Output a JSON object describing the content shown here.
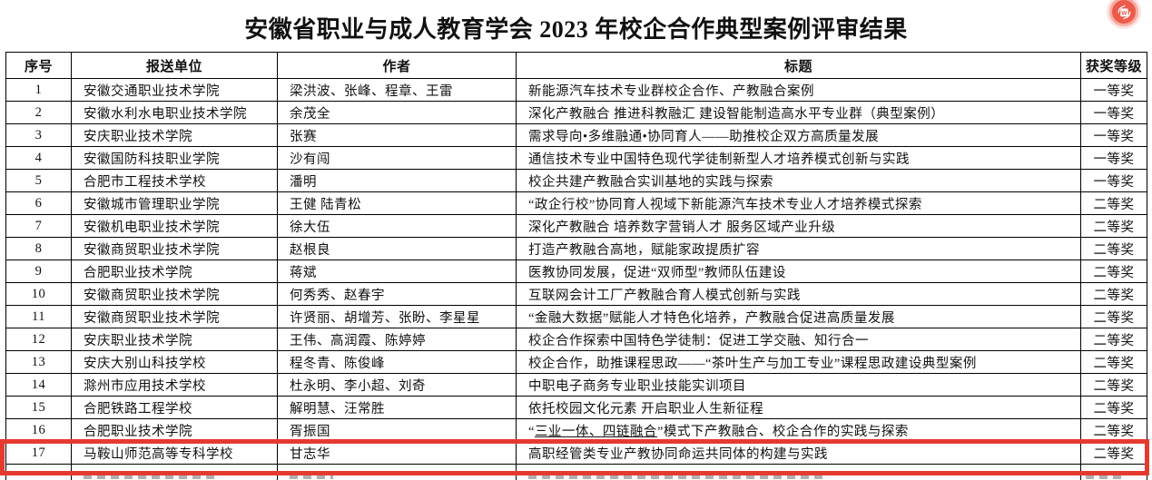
{
  "page": {
    "title": "安徽省职业与成人教育学会 2023 年校企合作典型案例评审结果"
  },
  "icons": {
    "fab": "doc-convert-icon"
  },
  "colors": {
    "highlight_border": "#e53a2e",
    "fab_circle": "#ec5a4a",
    "fab_halo": "#f6aca2",
    "table_border": "#000000"
  },
  "table": {
    "headers": [
      "序号",
      "报送单位",
      "作者",
      "标题",
      "获奖等级"
    ],
    "highlighted_row_no": "17",
    "partial_row_clipped_at_bottom": true,
    "rows": [
      {
        "no": "1",
        "unit": "安徽交通职业技术学院",
        "authors": "梁洪波、张峰、程章、王雷",
        "title": "新能源汽车技术专业群校企合作、产教融合案例",
        "award": "一等奖"
      },
      {
        "no": "2",
        "unit": "安徽水利水电职业技术学院",
        "authors": "余茂全",
        "title": "深化产教融合 推进科教融汇 建设智能制造高水平专业群（典型案例）",
        "award": "一等奖"
      },
      {
        "no": "3",
        "unit": "安庆职业技术学院",
        "authors": "张赛",
        "title": "需求导向•多维融通•协同育人——助推校企双方高质量发展",
        "award": "一等奖"
      },
      {
        "no": "4",
        "unit": "安徽国防科技职业学院",
        "authors": "沙有闯",
        "title": "通信技术专业中国特色现代学徒制新型人才培养模式创新与实践",
        "award": "一等奖"
      },
      {
        "no": "5",
        "unit": "合肥市工程技术学校",
        "authors": "潘明",
        "title": "校企共建产教融合实训基地的实践与探索",
        "award": "一等奖"
      },
      {
        "no": "6",
        "unit": "安徽城市管理职业学院",
        "authors": "王健 陆青松",
        "title": "“政企行校”协同育人视域下新能源汽车技术专业人才培养模式探索",
        "award": "二等奖"
      },
      {
        "no": "7",
        "unit": "安徽机电职业技术学院",
        "authors": "徐大伍",
        "title": "深化产教融合 培养数字营销人才 服务区域产业升级",
        "award": "二等奖"
      },
      {
        "no": "8",
        "unit": "安徽商贸职业技术学院",
        "authors": "赵根良",
        "title": "打造产教融合高地，赋能家政提质扩容",
        "award": "二等奖"
      },
      {
        "no": "9",
        "unit": "合肥职业技术学院",
        "authors": "蒋斌",
        "title": "医教协同发展，促进“双师型”教师队伍建设",
        "award": "二等奖"
      },
      {
        "no": "10",
        "unit": "安徽商贸职业技术学院",
        "authors": "何秀秀、赵春宇",
        "title": "互联网会计工厂产教融合育人模式创新与实践",
        "award": "二等奖"
      },
      {
        "no": "11",
        "unit": "安徽商贸职业技术学院",
        "authors": "许贤丽、胡增芳、张盼、李星星",
        "title": "“金融大数据”赋能人才特色化培养，产教融合促进高质量发展",
        "award": "二等奖"
      },
      {
        "no": "12",
        "unit": "安庆职业技术学院",
        "authors": "王伟、高润霞、陈婷婷",
        "title": "校企合作探索中国特色学徒制：促进工学交融、知行合一",
        "award": "二等奖"
      },
      {
        "no": "13",
        "unit": "安庆大别山科技学校",
        "authors": "程冬青、陈俊峰",
        "title": "校企合作，助推课程思政——“茶叶生产与加工专业”课程思政建设典型案例",
        "award": "二等奖"
      },
      {
        "no": "14",
        "unit": "滁州市应用技术学校",
        "authors": "杜永明、李小超、刘奇",
        "title": "中职电子商务专业职业技能实训项目",
        "award": "二等奖"
      },
      {
        "no": "15",
        "unit": "合肥铁路工程学校",
        "authors": "解明慧、汪常胜",
        "title": "依托校园文化元素 开启职业人生新征程",
        "award": "二等奖"
      },
      {
        "no": "16",
        "unit": "合肥职业技术学院",
        "authors": "胥振国",
        "title": "“三业一体、四链融合”模式下产教融合、校企合作的实践与探索",
        "title_parts": {
          "before": "“",
          "underline": "三业一体、四链融合",
          "after": "”模式下产教融合、校企合作的实践与探索"
        },
        "award": "二等奖"
      },
      {
        "no": "17",
        "unit": "马鞍山师范高等专科学校",
        "authors": "甘志华",
        "title": "高职经管类专业产教协同命运共同体的构建与实践",
        "award": "二等奖"
      }
    ]
  }
}
